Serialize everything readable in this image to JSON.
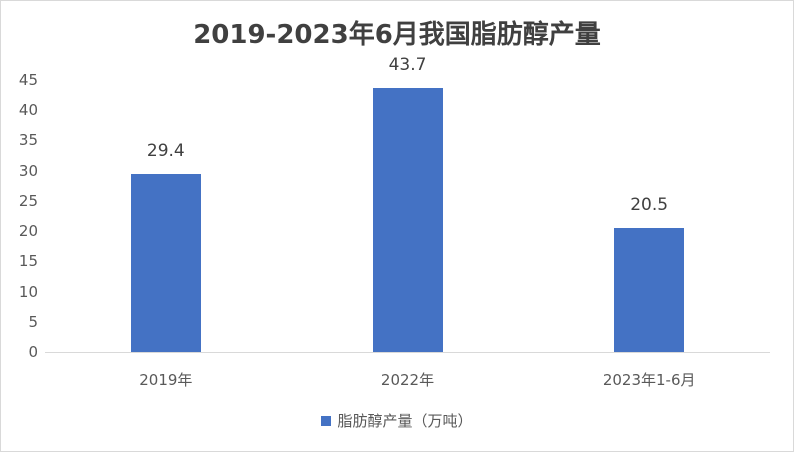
{
  "chart_data": {
    "type": "bar",
    "title": "2019-2023年6月我国脂肪醇产量",
    "categories": [
      "2019年",
      "2022年",
      "2023年1-6月"
    ],
    "series": [
      {
        "name": "脂肪醇产量（万吨）",
        "values": [
          29.4,
          43.7,
          20.5
        ],
        "color": "#4472c4"
      }
    ],
    "data_labels": [
      "29.4",
      "43.7",
      "20.5"
    ],
    "xlabel": "",
    "ylabel": "",
    "ylim": [
      0,
      45
    ],
    "yticks": [
      "0",
      "5",
      "10",
      "15",
      "20",
      "25",
      "30",
      "35",
      "40",
      "45"
    ],
    "grid": false,
    "legend_position": "bottom"
  }
}
